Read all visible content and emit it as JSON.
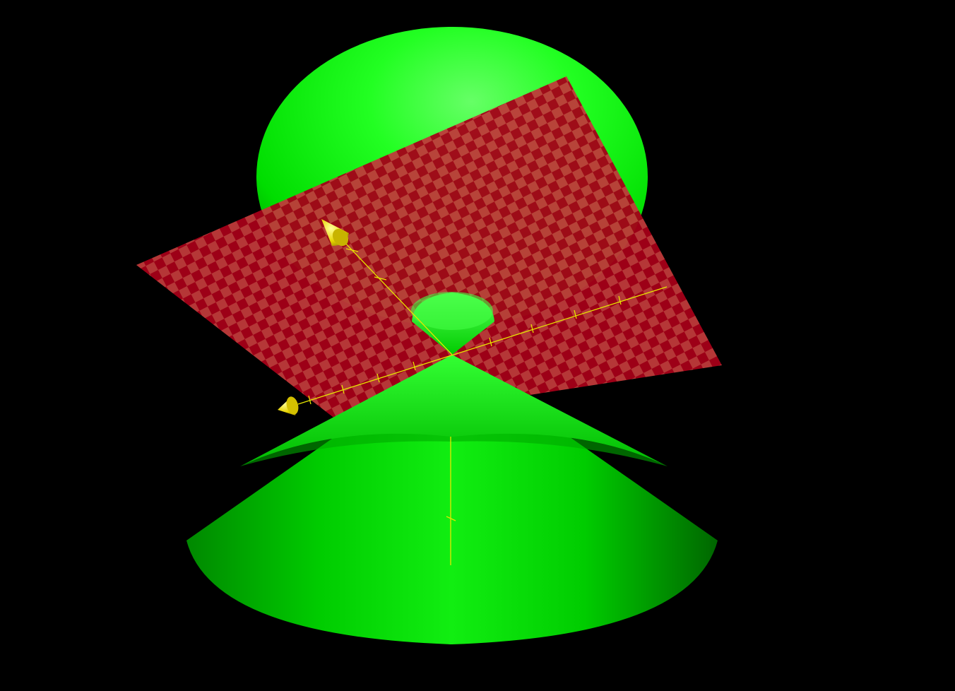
{
  "scene": {
    "background_color": "#000000",
    "surfaces": [
      {
        "name": "upper-cone-nappe",
        "color": "#00ff00"
      },
      {
        "name": "lower-cone-nappe",
        "color": "#00ff00"
      },
      {
        "name": "cutting-plane",
        "color": "#8b0a1a",
        "pattern": "checkerboard"
      }
    ],
    "axes": {
      "color": "#e6e600",
      "arrowheads": [
        "x-axis-arrow",
        "y-axis-arrow"
      ],
      "tick_marks_visible": true
    }
  }
}
